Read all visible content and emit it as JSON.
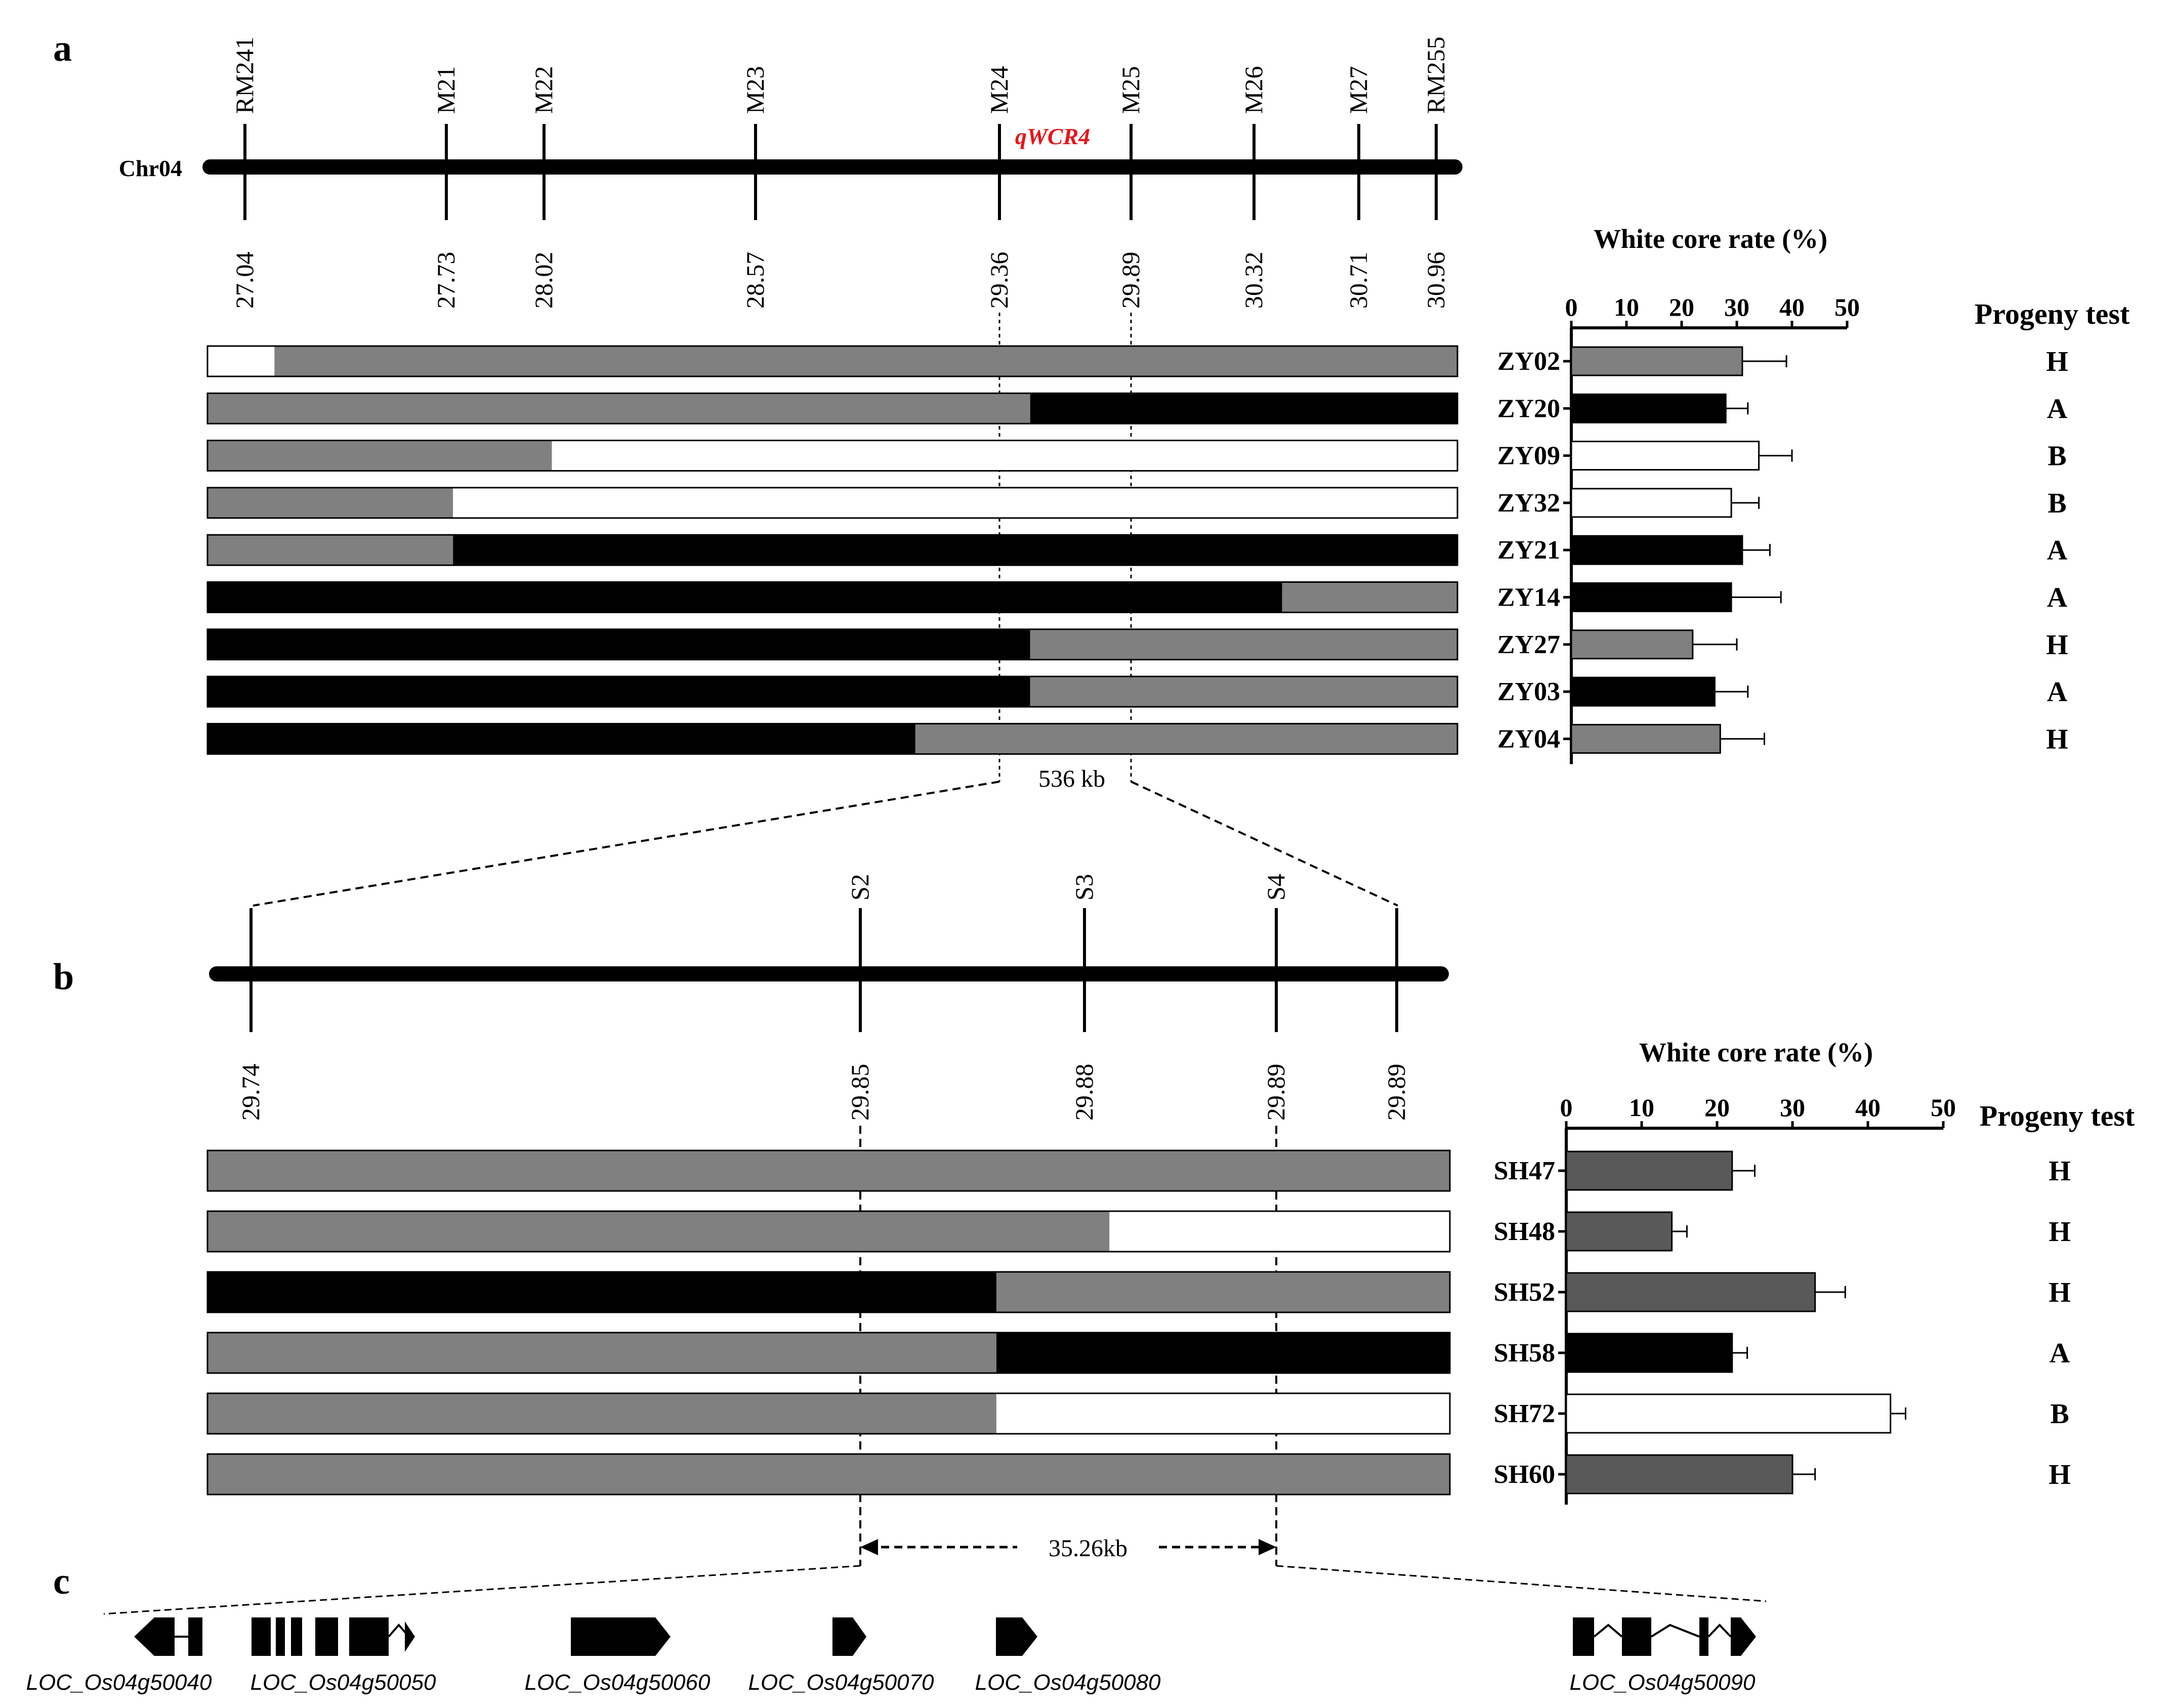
{
  "panel_a": {
    "label": "a",
    "chromosome_label": "Chr04",
    "qtl_label": "qWCR4",
    "markers": [
      {
        "name": "RM241",
        "pos": "27.04"
      },
      {
        "name": "M21",
        "pos": "27.73"
      },
      {
        "name": "M22",
        "pos": "28.02"
      },
      {
        "name": "M23",
        "pos": "28.57"
      },
      {
        "name": "M24",
        "pos": "29.36"
      },
      {
        "name": "M25",
        "pos": "29.89"
      },
      {
        "name": "M26",
        "pos": "30.32"
      },
      {
        "name": "M27",
        "pos": "30.71"
      },
      {
        "name": "RM255",
        "pos": "30.96"
      }
    ],
    "interval_label": "536 kb",
    "chart_title": "White core rate (%)",
    "progeny_header": "Progeny test",
    "recombinants": [
      {
        "name": "ZY02",
        "segments": [
          {
            "from": 27.04,
            "to": 27.25,
            "genotype": "B"
          },
          {
            "from": 27.25,
            "to": 30.96,
            "genotype": "H"
          }
        ],
        "wcr": 31,
        "err": 8,
        "progeny": "H"
      },
      {
        "name": "ZY20",
        "segments": [
          {
            "from": 27.04,
            "to": 29.62,
            "genotype": "H"
          },
          {
            "from": 29.62,
            "to": 30.96,
            "genotype": "A"
          }
        ],
        "wcr": 28,
        "err": 4,
        "progeny": "A"
      },
      {
        "name": "ZY09",
        "segments": [
          {
            "from": 27.04,
            "to": 28.12,
            "genotype": "H"
          },
          {
            "from": 28.12,
            "to": 30.96,
            "genotype": "B"
          }
        ],
        "wcr": 34,
        "err": 6,
        "progeny": "B"
      },
      {
        "name": "ZY32",
        "segments": [
          {
            "from": 27.04,
            "to": 27.81,
            "genotype": "H"
          },
          {
            "from": 27.81,
            "to": 30.96,
            "genotype": "B"
          }
        ],
        "wcr": 29,
        "err": 5,
        "progeny": "B"
      },
      {
        "name": "ZY21",
        "segments": [
          {
            "from": 27.04,
            "to": 27.81,
            "genotype": "H"
          },
          {
            "from": 27.81,
            "to": 30.96,
            "genotype": "A"
          }
        ],
        "wcr": 31,
        "err": 5,
        "progeny": "A"
      },
      {
        "name": "ZY14",
        "segments": [
          {
            "from": 27.04,
            "to": 30.41,
            "genotype": "A"
          },
          {
            "from": 30.41,
            "to": 30.96,
            "genotype": "H"
          }
        ],
        "wcr": 29,
        "err": 9,
        "progeny": "A"
      },
      {
        "name": "ZY27",
        "segments": [
          {
            "from": 27.04,
            "to": 29.62,
            "genotype": "A"
          },
          {
            "from": 29.62,
            "to": 30.96,
            "genotype": "H"
          }
        ],
        "wcr": 22,
        "err": 8,
        "progeny": "H"
      },
      {
        "name": "ZY03",
        "segments": [
          {
            "from": 27.04,
            "to": 29.62,
            "genotype": "A"
          },
          {
            "from": 29.62,
            "to": 30.96,
            "genotype": "H"
          }
        ],
        "wcr": 26,
        "err": 6,
        "progeny": "A"
      },
      {
        "name": "ZY04",
        "segments": [
          {
            "from": 27.04,
            "to": 29.26,
            "genotype": "A"
          },
          {
            "from": 29.26,
            "to": 30.96,
            "genotype": "H"
          }
        ],
        "wcr": 27,
        "err": 8,
        "progeny": "H"
      }
    ]
  },
  "panel_b": {
    "label": "b",
    "markers": [
      {
        "name": "",
        "pos": "29.74"
      },
      {
        "name": "S2",
        "pos": "29.85"
      },
      {
        "name": "S3",
        "pos": "29.88"
      },
      {
        "name": "S4",
        "pos": "29.89"
      },
      {
        "name": "",
        "pos": "29.89"
      }
    ],
    "interval_label": "35.26kb",
    "chart_title": "White core rate (%)",
    "progeny_header": "Progeny test",
    "recombinants": [
      {
        "name": "SH47",
        "segments": [
          {
            "from": 0,
            "to": 1,
            "genotype": "H"
          }
        ],
        "wcr": 22,
        "err": 3,
        "progeny": "H"
      },
      {
        "name": "SH48",
        "segments": [
          {
            "from": 0,
            "to": 0.726,
            "genotype": "H"
          },
          {
            "from": 0.726,
            "to": 1,
            "genotype": "B"
          }
        ],
        "wcr": 14,
        "err": 2,
        "progeny": "H"
      },
      {
        "name": "SH52",
        "segments": [
          {
            "from": 0,
            "to": 0.635,
            "genotype": "A"
          },
          {
            "from": 0.635,
            "to": 1,
            "genotype": "H"
          }
        ],
        "wcr": 33,
        "err": 4,
        "progeny": "H"
      },
      {
        "name": "SH58",
        "segments": [
          {
            "from": 0,
            "to": 0.635,
            "genotype": "H"
          },
          {
            "from": 0.635,
            "to": 1,
            "genotype": "A"
          }
        ],
        "wcr": 22,
        "err": 2,
        "progeny": "A"
      },
      {
        "name": "SH72",
        "segments": [
          {
            "from": 0,
            "to": 0.635,
            "genotype": "H"
          },
          {
            "from": 0.635,
            "to": 1,
            "genotype": "B"
          }
        ],
        "wcr": 43,
        "err": 2,
        "progeny": "B"
      },
      {
        "name": "SH60",
        "segments": [
          {
            "from": 0,
            "to": 1,
            "genotype": "H"
          }
        ],
        "wcr": 30,
        "err": 3,
        "progeny": "H"
      }
    ]
  },
  "panel_c": {
    "label": "c",
    "genes": [
      "LOC_Os04g50040",
      "LOC_Os04g50050",
      "LOC_Os04g50060",
      "LOC_Os04g50070",
      "LOC_Os04g50080",
      "LOC_Os04g50090"
    ]
  },
  "axis": {
    "min": 0,
    "max": 50,
    "ticks": [
      "0",
      "10",
      "20",
      "30",
      "40",
      "50"
    ]
  },
  "colors": {
    "A": "#000000",
    "H": "#808080",
    "B": "#ffffff",
    "bar_A": "#000000",
    "bar_H_a": "#808080",
    "bar_H_b": "#595959",
    "bar_B": "#ffffff",
    "qtl": "#e8141a"
  }
}
